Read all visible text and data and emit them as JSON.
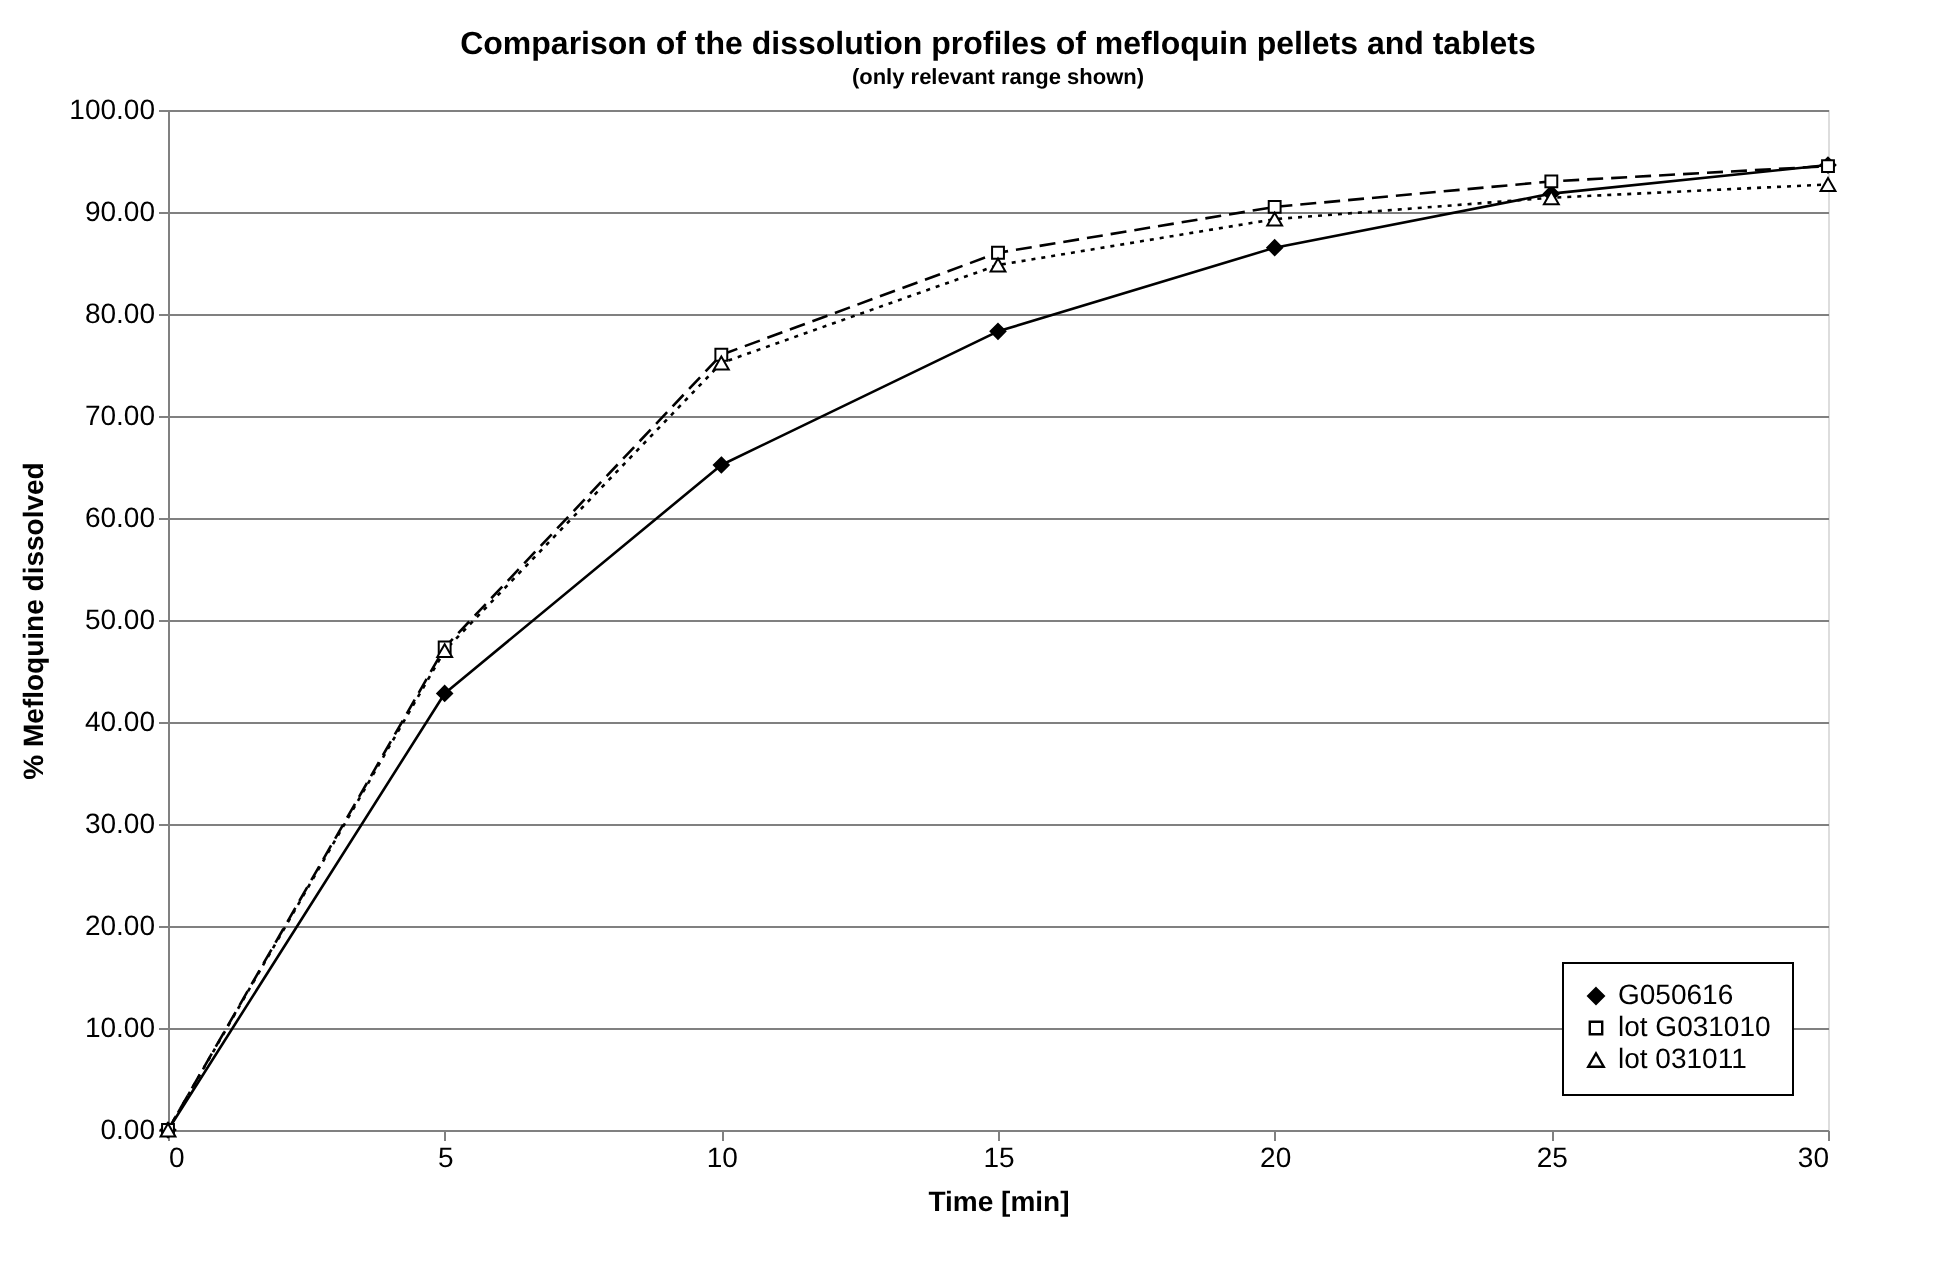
{
  "chart_data": {
    "type": "line",
    "title": "Comparison of the dissolution profiles of mefloquin pellets and tablets",
    "subtitle": "(only relevant range shown)",
    "xlabel": "Time [min]",
    "ylabel": "% Mefloquine dissolved",
    "x": [
      0,
      5,
      10,
      15,
      20,
      25,
      30
    ],
    "series": [
      {
        "name": "G050616",
        "color": "#000000",
        "marker": "diamond",
        "line_style": "solid",
        "values": [
          0,
          42.8,
          65.2,
          78.3,
          86.5,
          91.8,
          94.6
        ]
      },
      {
        "name": "lot G031010",
        "color": "#000000",
        "marker": "square",
        "line_style": "dashed",
        "values": [
          0,
          47.3,
          76.0,
          86.0,
          90.5,
          93.0,
          94.5
        ]
      },
      {
        "name": "lot 031011",
        "color": "#000000",
        "marker": "triangle",
        "line_style": "dotted",
        "values": [
          0,
          47.0,
          75.2,
          84.8,
          89.3,
          91.4,
          92.7
        ]
      }
    ],
    "xlim": [
      0,
      30
    ],
    "xticks": [
      0,
      5,
      10,
      15,
      20,
      25,
      30
    ],
    "ylim": [
      0,
      100
    ],
    "yticks": [
      {
        "value": 0,
        "label": "0.00"
      },
      {
        "value": 10,
        "label": "10.00"
      },
      {
        "value": 20,
        "label": "20.00"
      },
      {
        "value": 30,
        "label": "30.00"
      },
      {
        "value": 40,
        "label": "40.00"
      },
      {
        "value": 50,
        "label": "50.00"
      },
      {
        "value": 60,
        "label": "60.00"
      },
      {
        "value": 70,
        "label": "70.00"
      },
      {
        "value": 80,
        "label": "80.00"
      },
      {
        "value": 90,
        "label": "90.00"
      },
      {
        "value": 100,
        "label": "100.00"
      }
    ],
    "grid": "y",
    "legend": "bottom right"
  }
}
